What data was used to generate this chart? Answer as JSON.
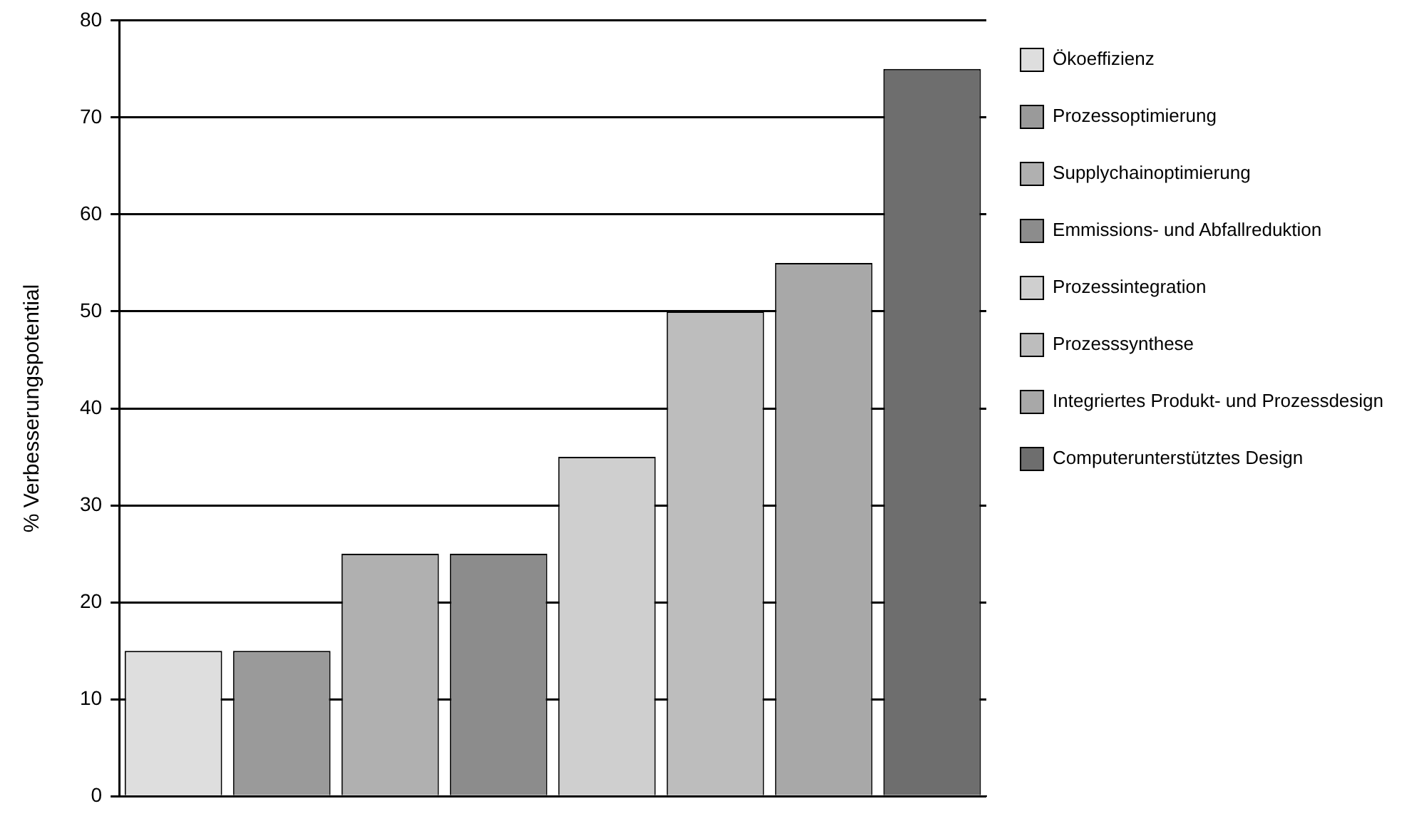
{
  "chart_data": {
    "type": "bar",
    "ylabel": "% Verbesserungspotential",
    "categories": [
      null,
      null,
      null,
      null,
      null,
      null,
      null,
      null
    ],
    "series": [
      {
        "name": "Ökoeffizienz",
        "color": "#dedede",
        "values": [
          15,
          null,
          null,
          null,
          null,
          null,
          null,
          null
        ]
      },
      {
        "name": "Prozessoptimierung",
        "color": "#9a9a9a",
        "values": [
          null,
          15,
          null,
          null,
          null,
          null,
          null,
          null
        ]
      },
      {
        "name": "Supplychainoptimierung",
        "color": "#b0b0b0",
        "values": [
          null,
          null,
          25,
          null,
          null,
          null,
          null,
          null
        ]
      },
      {
        "name": "Emmissions- und Abfallreduktion",
        "color": "#8c8c8c",
        "values": [
          null,
          null,
          null,
          25,
          null,
          null,
          null,
          null
        ]
      },
      {
        "name": "Prozessintegration",
        "color": "#cfcfcf",
        "values": [
          null,
          null,
          null,
          null,
          35,
          null,
          null,
          null
        ]
      },
      {
        "name": "Prozesssynthese",
        "color": "#bdbdbd",
        "values": [
          null,
          null,
          null,
          null,
          null,
          50,
          null,
          null
        ]
      },
      {
        "name": "Integriertes Produkt- und Prozessdesign",
        "color": "#a8a8a8",
        "values": [
          null,
          null,
          null,
          null,
          null,
          null,
          55,
          null
        ]
      },
      {
        "name": "Computerunterstütztes Design",
        "color": "#6e6e6e",
        "values": [
          null,
          null,
          null,
          null,
          null,
          null,
          null,
          75
        ]
      }
    ],
    "ylim": [
      0,
      80
    ],
    "yticks": [
      0,
      10,
      20,
      30,
      40,
      50,
      60,
      70,
      80
    ],
    "grid": "y",
    "legend": "right"
  }
}
